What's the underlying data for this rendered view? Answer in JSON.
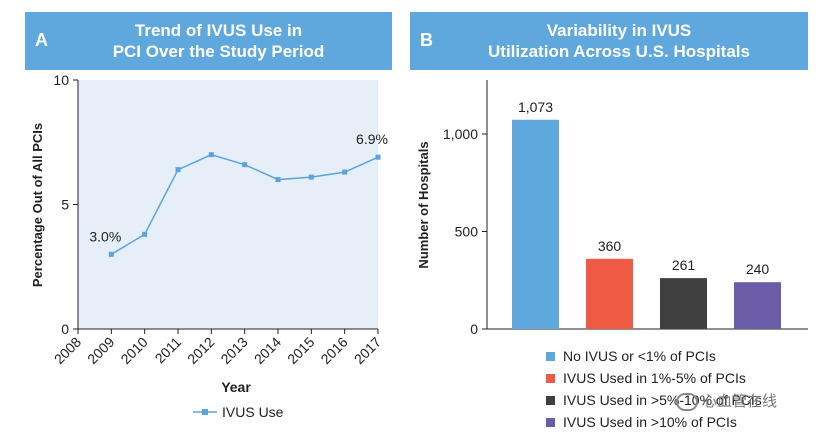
{
  "panels": {
    "a": {
      "letter": "A",
      "title_line1": "Trend of IVUS Use in",
      "title_line2": "PCI Over the Study Period"
    },
    "b": {
      "letter": "B",
      "title_line1": "Variability in IVUS",
      "title_line2": "Utilization Across U.S. Hospitals"
    }
  },
  "colors": {
    "header": "#5fa8de",
    "plot_bg": "#e6eef8",
    "line": "#5ba3dc"
  },
  "chart_data": [
    {
      "type": "line",
      "x": [
        2009,
        2010,
        2011,
        2012,
        2013,
        2014,
        2015,
        2016,
        2017
      ],
      "series": [
        {
          "name": "IVUS Use",
          "values": [
            3.0,
            3.8,
            6.4,
            7.0,
            6.6,
            6.0,
            6.1,
            6.3,
            6.9
          ]
        }
      ],
      "xticks": [
        "2008",
        "2009",
        "2010",
        "2011",
        "2012",
        "2013",
        "2014",
        "2015",
        "2016",
        "2017"
      ],
      "yticks": [
        "0",
        "5",
        "10"
      ],
      "xlabel": "Year",
      "ylabel": "Percentage Out of All PCIs",
      "xlim": [
        2008,
        2017
      ],
      "ylim": [
        0,
        10
      ],
      "annotations": [
        {
          "x": 2009,
          "text": "3.0%"
        },
        {
          "x": 2017,
          "text": "6.9%"
        }
      ],
      "legend": "bottom",
      "grid": false
    },
    {
      "type": "bar",
      "categories": [
        "No IVUS or <1% of PCIs",
        "IVUS Used in 1%-5% of PCIs",
        "IVUS Used in >5%-10% of PCIs",
        "IVUS Used in >10% of PCIs"
      ],
      "values": [
        1073,
        360,
        261,
        240
      ],
      "data_labels": [
        "1,073",
        "360",
        "261",
        "240"
      ],
      "bar_colors": [
        "#5ea8de",
        "#ef5a45",
        "#3f3f3f",
        "#6a5ca6"
      ],
      "yticks": [
        "0",
        "500",
        "1,000"
      ],
      "ylabel": "Number of Hospitals",
      "ylim": [
        0,
        1000
      ],
      "legend": "bottom",
      "grid": false
    }
  ],
  "watermark": "心血管在线"
}
